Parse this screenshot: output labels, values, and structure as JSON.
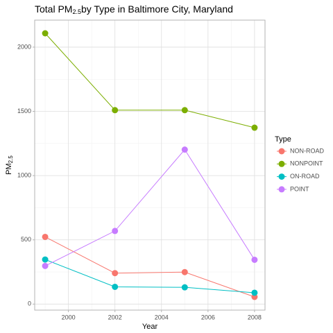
{
  "chart_data": {
    "type": "line",
    "title": {
      "main": "Total PM",
      "sub": "2.5",
      "rest": "by Type in Baltimore City, Maryland"
    },
    "x_label": "Year",
    "y_label": {
      "main": "PM",
      "sub": "2.5"
    },
    "legend_title": "Type",
    "legend": "right",
    "grid": true,
    "x": [
      1999,
      2002,
      2005,
      2008
    ],
    "xlim": [
      1998.55,
      2008.45
    ],
    "xticks": [
      2000,
      2002,
      2004,
      2006,
      2008
    ],
    "xminorticks": [
      1999,
      2001,
      2003,
      2005,
      2007
    ],
    "ylim": [
      -46.8,
      2210.2
    ],
    "yticks": [
      0,
      500,
      1000,
      1500,
      2000
    ],
    "yminorticks": [
      250,
      750,
      1250,
      1750
    ],
    "series": [
      {
        "name": "NON-ROAD",
        "color": "#F8766D",
        "values": [
          522.9,
          240.8,
          248.9,
          55.8
        ]
      },
      {
        "name": "NONPOINT",
        "color": "#7CAE00",
        "values": [
          2107.6,
          1509.5,
          1509.5,
          1373.2
        ]
      },
      {
        "name": "ON-ROAD",
        "color": "#00BFC4",
        "values": [
          346.8,
          134.3,
          130.4,
          88.3
        ]
      },
      {
        "name": "POINT",
        "color": "#C77CFF",
        "values": [
          296.8,
          569.3,
          1202.5,
          345.0
        ]
      }
    ]
  }
}
